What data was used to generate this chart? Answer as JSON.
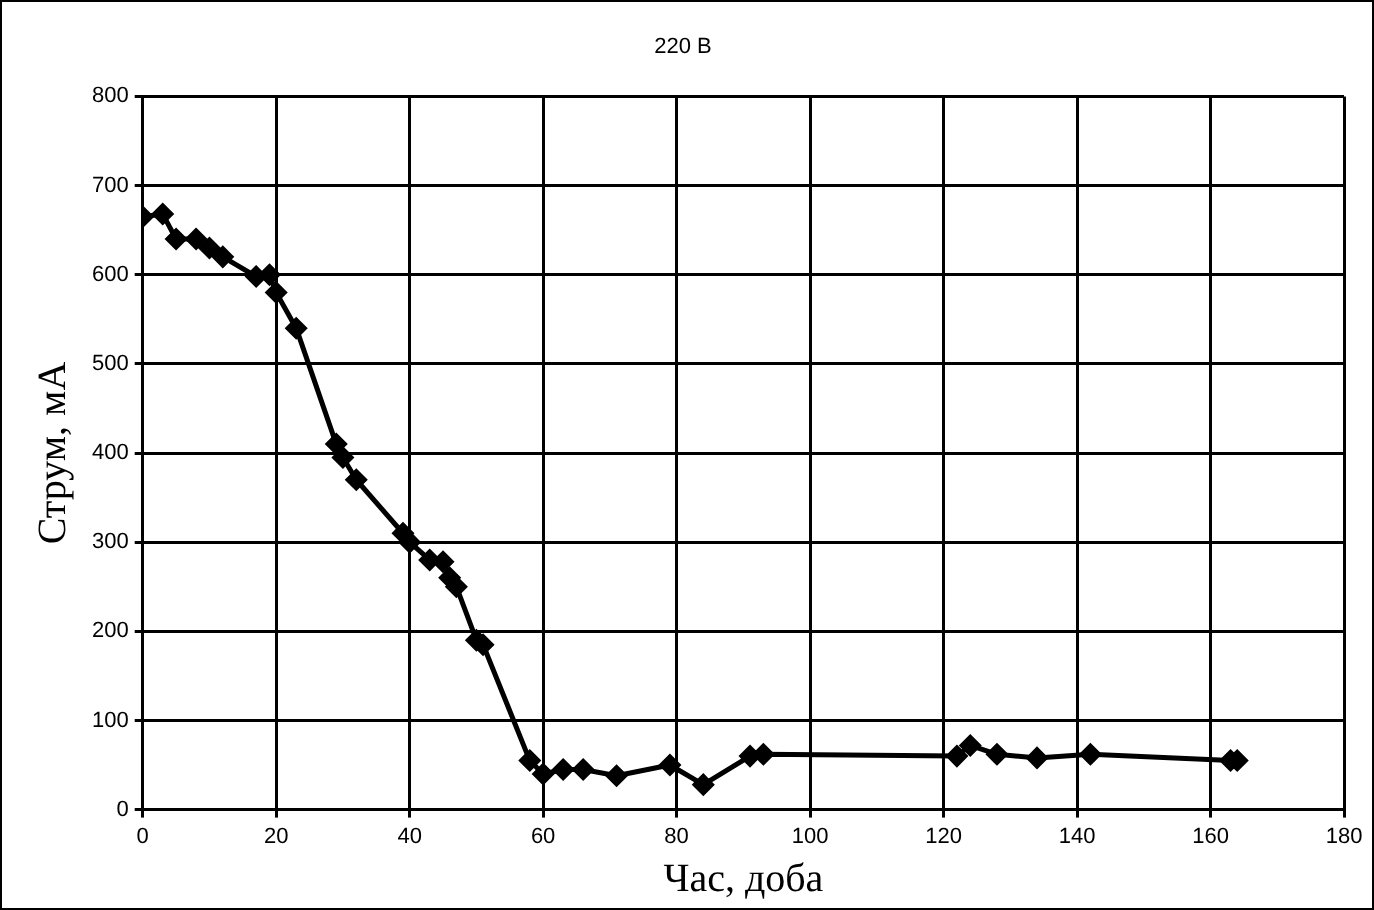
{
  "chart_data": {
    "type": "line",
    "title": "220 В",
    "xlabel": "Час, доба",
    "ylabel": "Струм, мА",
    "x": [
      0,
      3,
      5,
      8,
      10,
      12,
      17,
      19,
      20,
      23,
      29,
      30,
      32,
      39,
      40,
      43,
      45,
      46,
      47,
      50,
      51,
      58,
      60,
      63,
      66,
      71,
      79,
      84,
      91,
      93,
      122,
      124,
      128,
      134,
      142,
      163,
      164
    ],
    "series": [
      {
        "color": "#000000",
        "values": [
          665,
          668,
          640,
          640,
          630,
          620,
          598,
          600,
          580,
          540,
          410,
          395,
          370,
          310,
          300,
          280,
          278,
          260,
          250,
          190,
          185,
          55,
          40,
          45,
          45,
          38,
          50,
          28,
          60,
          62,
          60,
          72,
          62,
          58,
          62,
          55,
          55
        ]
      }
    ],
    "xlim": [
      0,
      180
    ],
    "xticks": [
      0,
      20,
      40,
      60,
      80,
      100,
      120,
      140,
      160,
      180
    ],
    "ylim": [
      0,
      800
    ],
    "yticks": [
      0,
      100,
      200,
      300,
      400,
      500,
      600,
      700,
      800
    ],
    "grid": true,
    "legend": false,
    "marker": "diamond",
    "line_style": "solid"
  }
}
